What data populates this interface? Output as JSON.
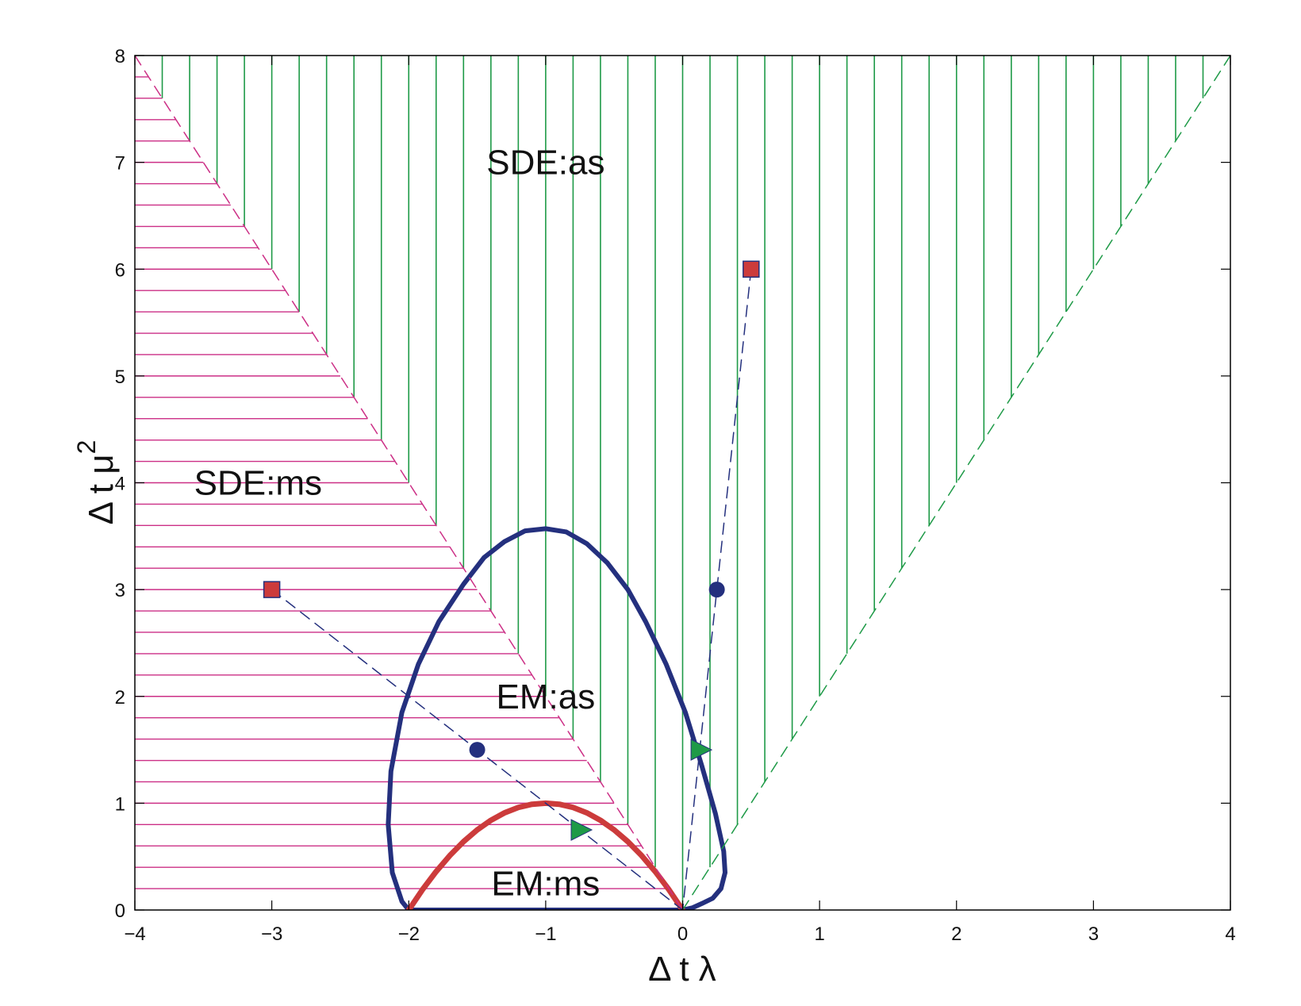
{
  "chart_data": {
    "type": "line",
    "title": "",
    "xlabel": "Δ t λ",
    "ylabel_base": "Δ t μ",
    "ylabel_sup": "2",
    "xlim": [
      -4,
      4
    ],
    "ylim": [
      0,
      8
    ],
    "xticks": [
      -4,
      -3,
      -2,
      -1,
      0,
      1,
      2,
      3,
      4
    ],
    "yticks": [
      0,
      1,
      2,
      3,
      4,
      5,
      6,
      7,
      8
    ],
    "xtick_labels": [
      "−4",
      "−3",
      "−2",
      "−1",
      "0",
      "1",
      "2",
      "3",
      "4"
    ],
    "ytick_labels": [
      "0",
      "1",
      "2",
      "3",
      "4",
      "5",
      "6",
      "7",
      "8"
    ],
    "grid": false,
    "regions": [
      {
        "label": "SDE:as",
        "x": -1.0,
        "y": 7.0,
        "boundary": "y = 2x, x from 0 to 4",
        "hatch": "vertical",
        "color": "#1e9a47"
      },
      {
        "label": "SDE:ms",
        "x": -3.1,
        "y": 4.0,
        "boundary": "y = -2x, x from -4 to 0",
        "hatch": "horizontal",
        "color": "#cc2f86"
      },
      {
        "label": "EM:as",
        "x": -1.0,
        "y": 2.0
      },
      {
        "label": "EM:ms",
        "x": -1.0,
        "y": 0.25
      }
    ],
    "series": [
      {
        "role": "EM:as boundary",
        "color": "#24307e",
        "width": 6,
        "x": [
          -2.0,
          -2.05,
          -2.12,
          -2.15,
          -2.13,
          -2.05,
          -1.93,
          -1.78,
          -1.6,
          -1.45,
          -1.3,
          -1.15,
          -1.0,
          -0.85,
          -0.7,
          -0.55,
          -0.4,
          -0.27,
          -0.12,
          0.02,
          0.14,
          0.24,
          0.3,
          0.31,
          0.28,
          0.22,
          0.14,
          0.07,
          0.0
        ],
        "y": [
          0.0,
          0.08,
          0.35,
          0.8,
          1.3,
          1.85,
          2.3,
          2.7,
          3.05,
          3.3,
          3.45,
          3.55,
          3.57,
          3.54,
          3.43,
          3.25,
          3.0,
          2.7,
          2.3,
          1.85,
          1.35,
          0.9,
          0.55,
          0.35,
          0.2,
          0.11,
          0.06,
          0.02,
          0.0
        ]
      },
      {
        "role": "EM:as base",
        "color": "#24307e",
        "width": 6,
        "x": [
          -2.0,
          0.0
        ],
        "y": [
          0.0,
          0.0
        ]
      },
      {
        "role": "EM:ms boundary",
        "color": "#cc3b3b",
        "width": 7,
        "formula": "y = -x(x+2)",
        "x": [
          -2.0,
          -1.9,
          -1.8,
          -1.7,
          -1.6,
          -1.5,
          -1.4,
          -1.3,
          -1.2,
          -1.1,
          -1.0,
          -0.9,
          -0.8,
          -0.7,
          -0.6,
          -0.5,
          -0.4,
          -0.3,
          -0.2,
          -0.1,
          0.0
        ],
        "y": [
          0.0,
          0.19,
          0.36,
          0.51,
          0.64,
          0.75,
          0.84,
          0.91,
          0.96,
          0.99,
          1.0,
          0.99,
          0.96,
          0.91,
          0.84,
          0.75,
          0.64,
          0.51,
          0.36,
          0.19,
          0.0
        ]
      },
      {
        "role": "SDE:ms boundary",
        "color": "#cc2f86",
        "dash": true,
        "x": [
          -4,
          0
        ],
        "y": [
          8,
          0
        ]
      },
      {
        "role": "SDE:as boundary",
        "color": "#1e9a47",
        "dash": true,
        "x": [
          0,
          4
        ],
        "y": [
          0,
          8
        ]
      },
      {
        "role": "path 1",
        "color": "#24307e",
        "dash": true,
        "x": [
          -3.0,
          0.0
        ],
        "y": [
          3.0,
          0.0
        ]
      },
      {
        "role": "path 2",
        "color": "#24307e",
        "dash": true,
        "x": [
          0.5,
          0.0
        ],
        "y": [
          6.0,
          0.0
        ]
      }
    ],
    "markers": [
      {
        "shape": "square",
        "x": -3.0,
        "y": 3.0,
        "color": "#cc3b3b"
      },
      {
        "shape": "circle",
        "x": -1.5,
        "y": 1.5,
        "color": "#24307e"
      },
      {
        "shape": "triangle",
        "x": -0.75,
        "y": 0.75,
        "color": "#1e9a47"
      },
      {
        "shape": "square",
        "x": 0.5,
        "y": 6.0,
        "color": "#cc3b3b"
      },
      {
        "shape": "circle",
        "x": 0.25,
        "y": 3.0,
        "color": "#24307e"
      },
      {
        "shape": "triangle",
        "x": 0.125,
        "y": 1.5,
        "color": "#1e9a47"
      }
    ]
  }
}
